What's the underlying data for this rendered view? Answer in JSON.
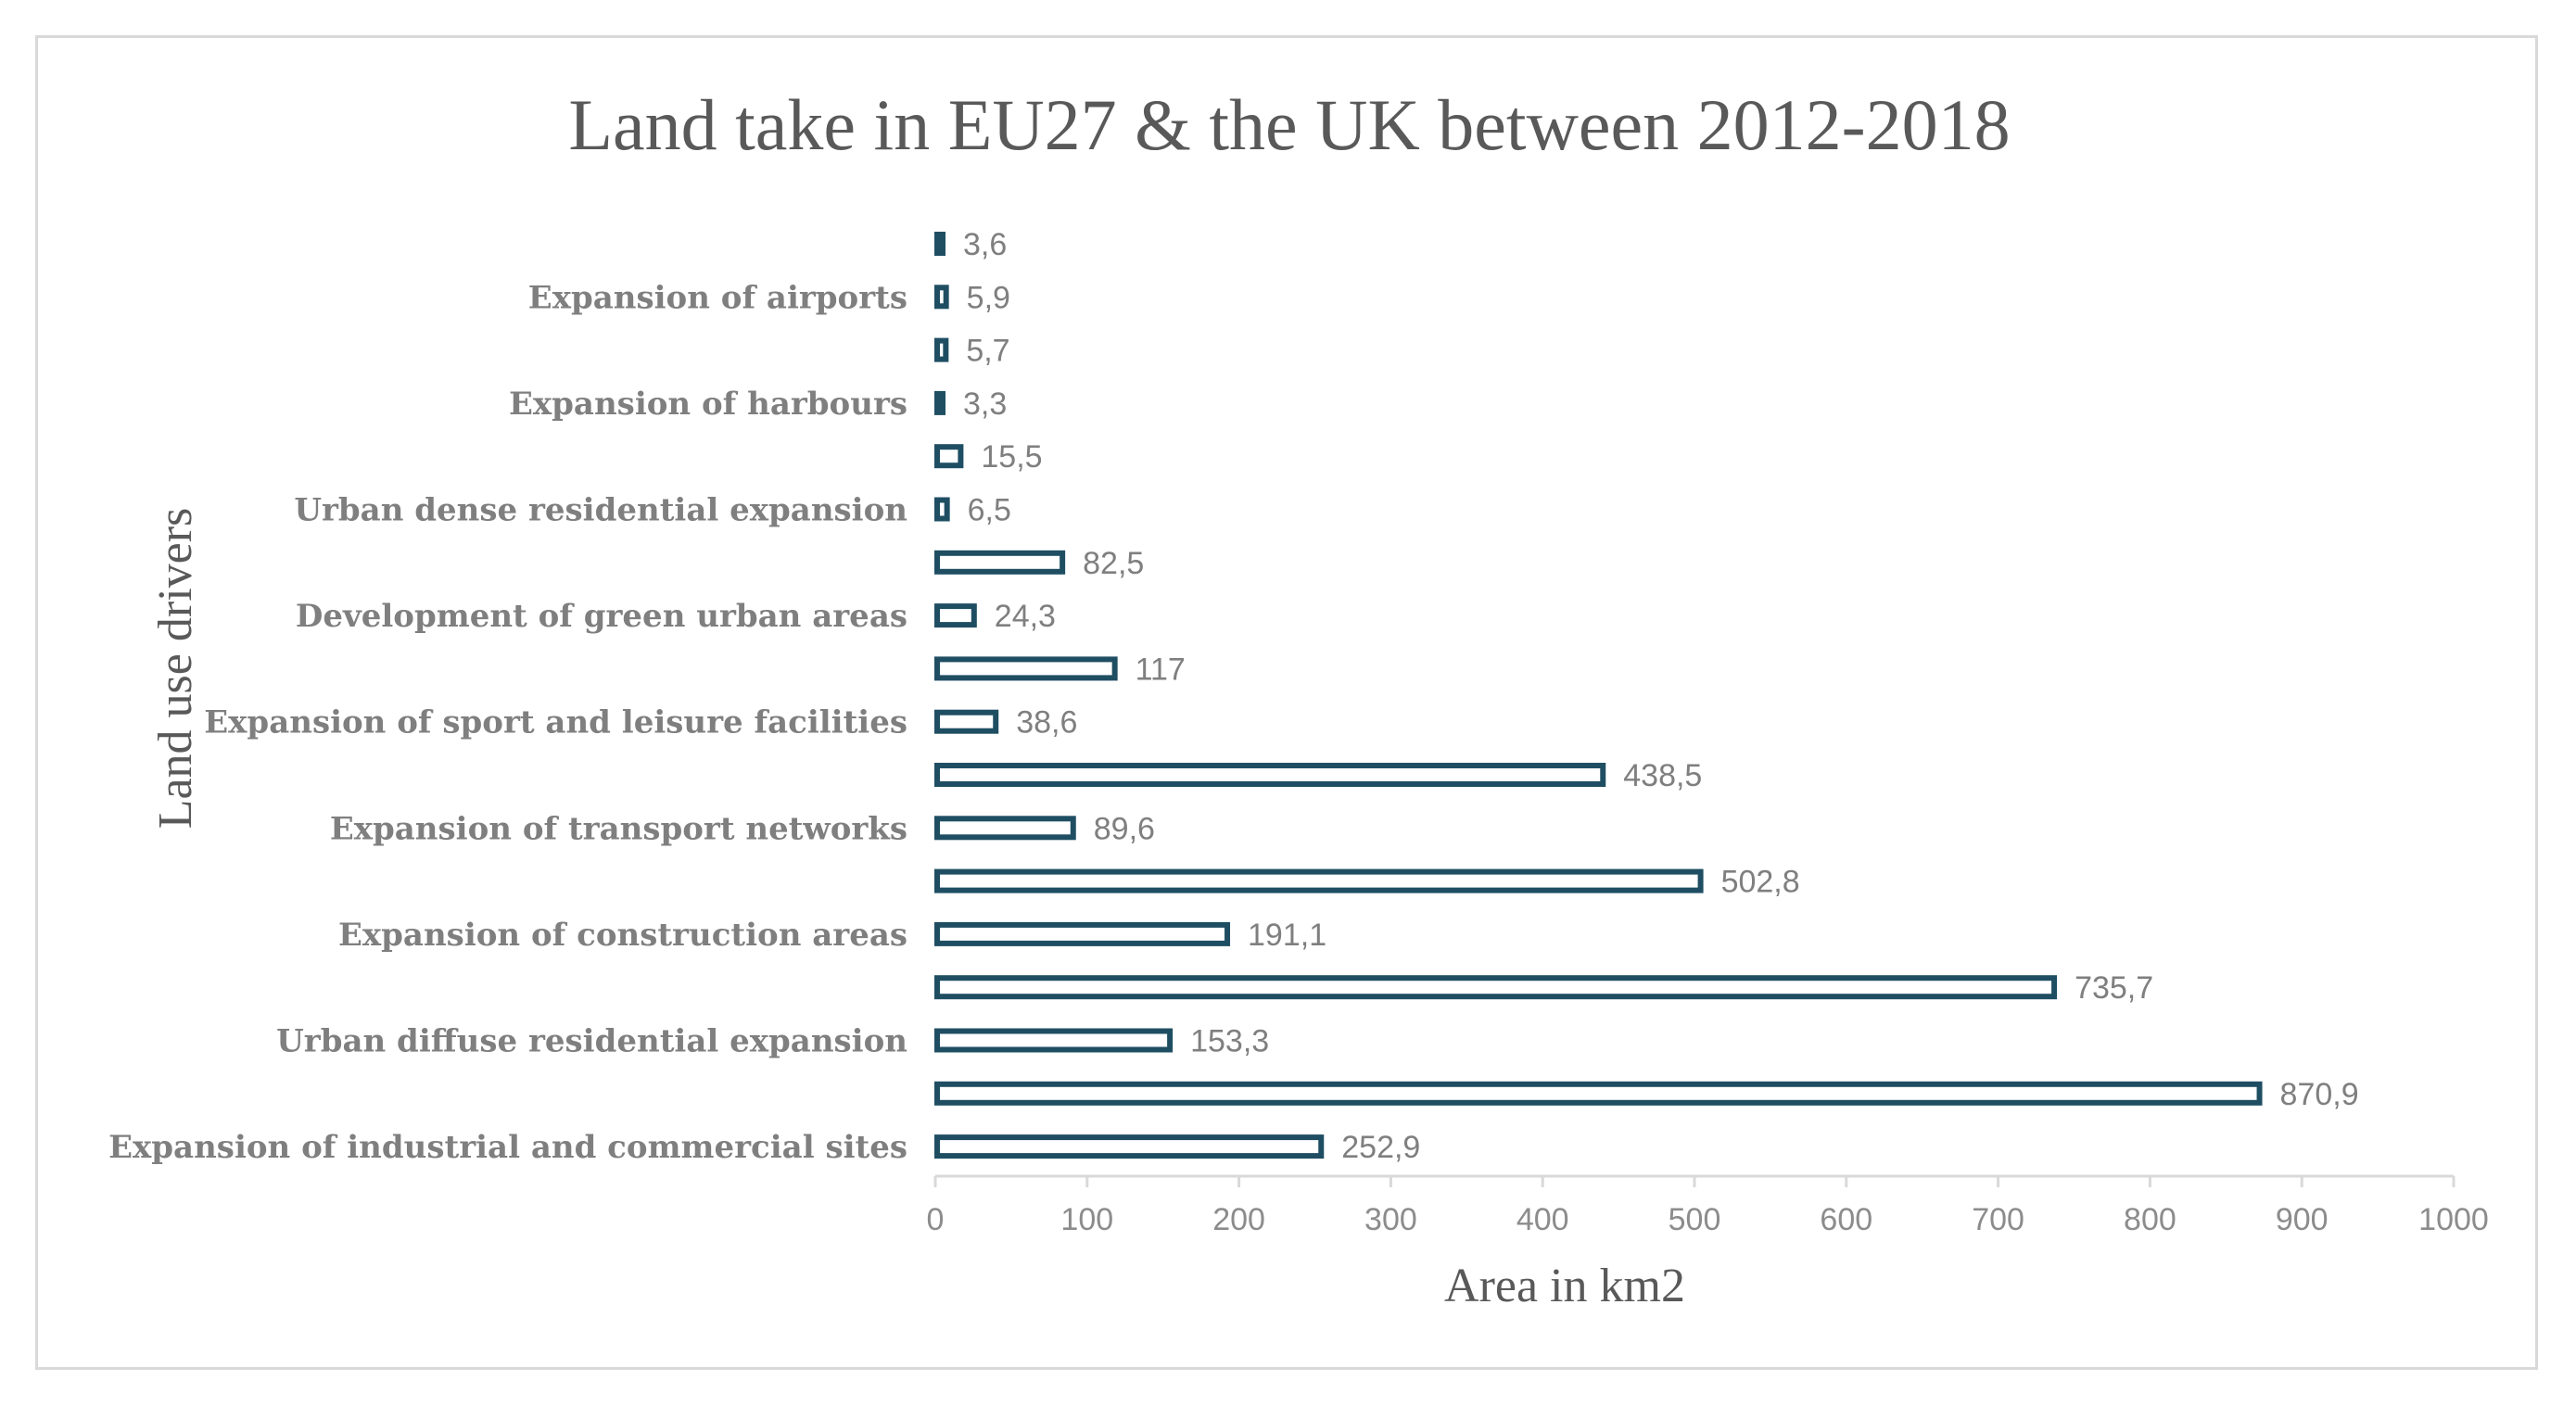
{
  "chart_data": {
    "type": "bar",
    "orientation": "horizontal",
    "title": "Land take in EU27 & the UK between 2012-2018",
    "xlabel": "Area in km2",
    "ylabel": "Land use drivers",
    "xlim": [
      0,
      1000
    ],
    "x_ticks": [
      "0",
      "100",
      "200",
      "300",
      "400",
      "500",
      "600",
      "700",
      "800",
      "900",
      "1000"
    ],
    "grid": false,
    "colors": {
      "bar_fill": "#ffffff",
      "bar_stroke": "#1f4e63",
      "axis": "#d9d9d9",
      "text": "#7f7f7f"
    },
    "bars": [
      {
        "category": "",
        "value": 3.6,
        "label": "3,6"
      },
      {
        "category": "Expansion of airports",
        "value": 5.9,
        "label": "5,9"
      },
      {
        "category": "",
        "value": 5.7,
        "label": "5,7"
      },
      {
        "category": "Expansion of harbours",
        "value": 3.3,
        "label": "3,3"
      },
      {
        "category": "",
        "value": 15.5,
        "label": "15,5"
      },
      {
        "category": "Urban dense residential expansion",
        "value": 6.5,
        "label": "6,5"
      },
      {
        "category": "",
        "value": 82.5,
        "label": "82,5"
      },
      {
        "category": "Development of green urban areas",
        "value": 24.3,
        "label": "24,3"
      },
      {
        "category": "",
        "value": 117,
        "label": "117"
      },
      {
        "category": "Expansion of sport and leisure facilities",
        "value": 38.6,
        "label": "38,6"
      },
      {
        "category": "",
        "value": 438.5,
        "label": "438,5"
      },
      {
        "category": "Expansion of transport networks",
        "value": 89.6,
        "label": "89,6"
      },
      {
        "category": "",
        "value": 502.8,
        "label": "502,8"
      },
      {
        "category": "Expansion of construction areas",
        "value": 191.1,
        "label": "191,1"
      },
      {
        "category": "",
        "value": 735.7,
        "label": "735,7"
      },
      {
        "category": "Urban diffuse residential expansion",
        "value": 153.3,
        "label": "153,3"
      },
      {
        "category": "",
        "value": 870.9,
        "label": "870,9"
      },
      {
        "category": "Expansion of industrial and commercial sites",
        "value": 252.9,
        "label": "252,9"
      }
    ]
  }
}
